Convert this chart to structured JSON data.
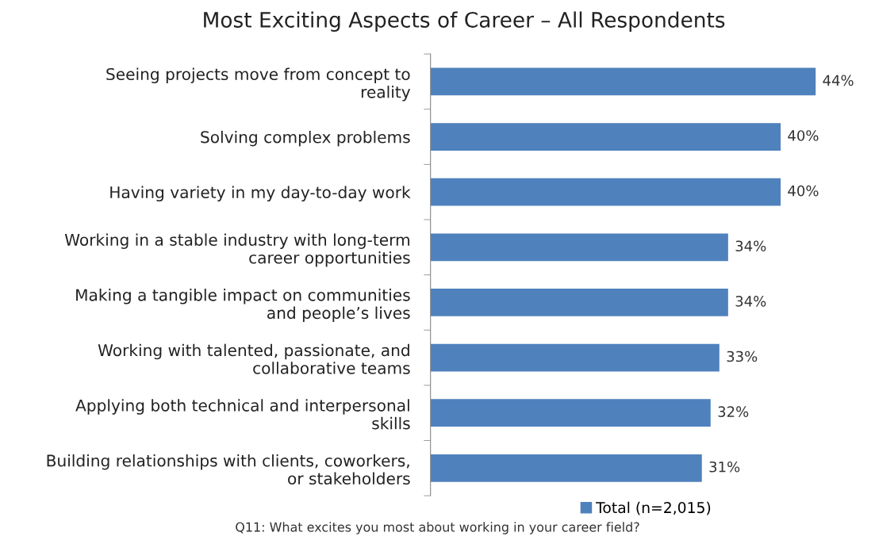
{
  "chart_data": {
    "type": "bar",
    "orientation": "horizontal",
    "title": "Most Exciting Aspects of Career – All Respondents",
    "categories": [
      "Seeing projects move from concept to\nreality",
      "Solving complex problems",
      "Having variety in my day-to-day work",
      "Working in a stable industry with long-term\ncareer opportunities",
      "Making a tangible impact on communities\nand people’s lives",
      "Working with talented, passionate, and\ncollaborative teams",
      "Applying both technical and interpersonal\nskills",
      "Building relationships with clients, coworkers,\nor stakeholders"
    ],
    "series": [
      {
        "name": "Total (n=2,015)",
        "color": "#4f81bd",
        "values": [
          44,
          40,
          40,
          34,
          34,
          33,
          32,
          31
        ],
        "value_labels": [
          "44%",
          "40%",
          "40%",
          "34%",
          "34%",
          "33%",
          "32%",
          "31%"
        ]
      }
    ],
    "legend": "bottom",
    "tick_labels": "y",
    "annotations": [
      "Q11: What excites you most about working in your career field?"
    ]
  }
}
